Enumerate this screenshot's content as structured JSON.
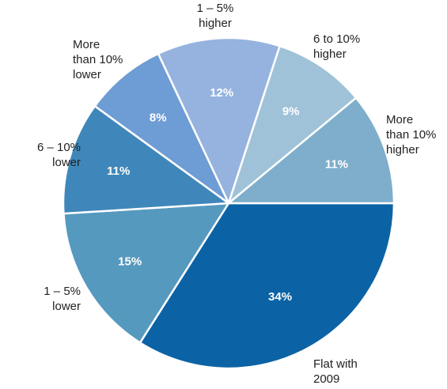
{
  "chart_data": {
    "type": "pie",
    "slices": [
      {
        "label": [
          "Flat with",
          "2009"
        ],
        "value": 34,
        "value_label": "34%",
        "color": "#0b63a5"
      },
      {
        "label": [
          "1 – 5%",
          "lower"
        ],
        "value": 15,
        "value_label": "15%",
        "color": "#5699bf"
      },
      {
        "label": [
          "6 – 10%",
          "lower"
        ],
        "value": 11,
        "value_label": "11%",
        "color": "#3f87ba"
      },
      {
        "label": [
          "More",
          "than 10%",
          "lower"
        ],
        "value": 8,
        "value_label": "8%",
        "color": "#6e9cd4"
      },
      {
        "label": [
          "1 – 5%",
          "higher"
        ],
        "value": 12,
        "value_label": "12%",
        "color": "#95b3de"
      },
      {
        "label": [
          "6 to 10%",
          "higher"
        ],
        "value": 9,
        "value_label": "9%",
        "color": "#9fc2d8"
      },
      {
        "label": [
          "More",
          "than 10%",
          "higher"
        ],
        "value": 11,
        "value_label": "11%",
        "color": "#7eaecb"
      }
    ],
    "start_angle_deg": 0,
    "direction": "clockwise"
  }
}
